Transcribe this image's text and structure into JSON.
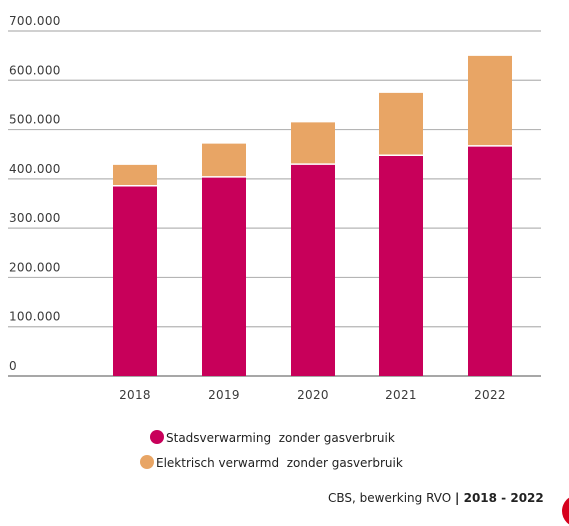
{
  "chart_data": {
    "type": "bar",
    "stacked": true,
    "categories": [
      "2018",
      "2019",
      "2020",
      "2021",
      "2022"
    ],
    "series": [
      {
        "name": "Stadsverwarming  zonder gasverbruik",
        "color": "#c8005a",
        "values": [
          386000,
          404000,
          430000,
          448000,
          467000
        ]
      },
      {
        "name": "Elektrisch verwarmd  zonder gasverbruik",
        "color": "#e8a565",
        "values": [
          44000,
          69000,
          86000,
          128000,
          184000
        ]
      }
    ],
    "y_ticks": [
      0,
      100000,
      200000,
      300000,
      400000,
      500000,
      600000,
      700000
    ],
    "y_tick_labels": [
      "0",
      "100.000",
      "200.000",
      "300.000",
      "400.000",
      "500.000",
      "600.000",
      "700.000"
    ],
    "ylim": [
      0,
      700000
    ],
    "grid": true,
    "legend_position": "bottom",
    "title": "",
    "xlabel": "",
    "ylabel": ""
  },
  "source": {
    "text": "CBS, bewerking RVO ",
    "bold": "| 2018 - 2022"
  },
  "colors": {
    "gridline": "#b5b5b5",
    "badge": "#d6001c"
  }
}
